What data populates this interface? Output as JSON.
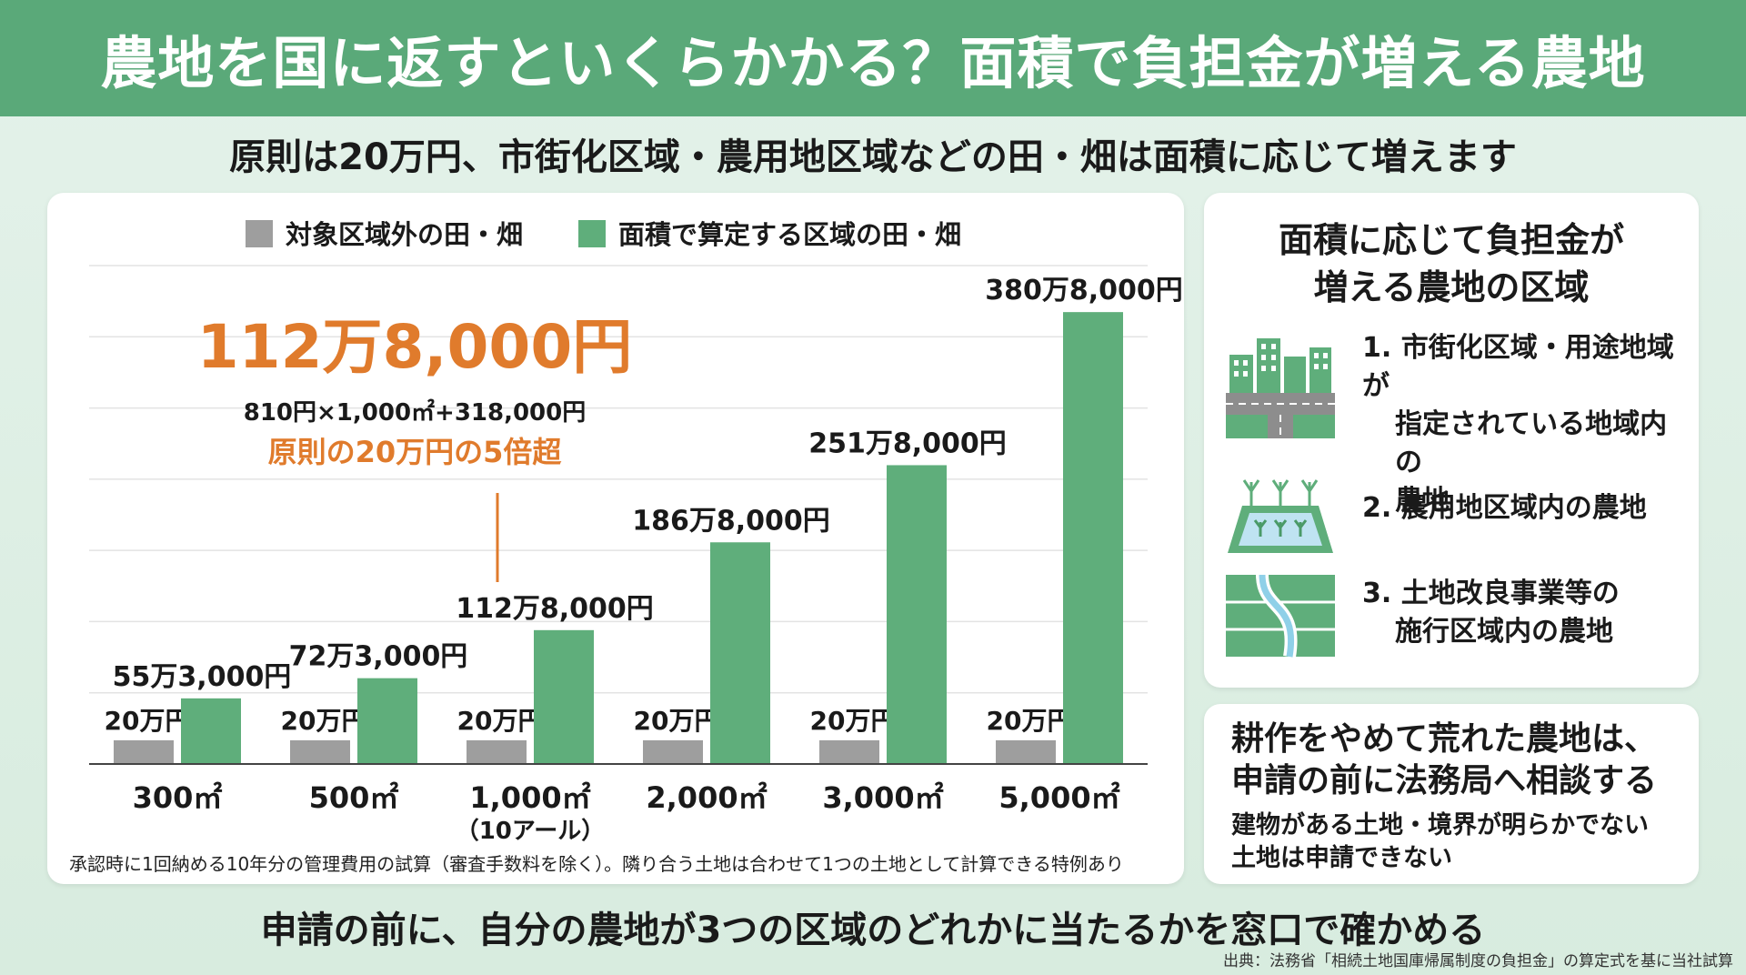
{
  "header": {
    "title": "農地を国に返すといくらかかる？面積で負担金が増える農地"
  },
  "subtitle": "原則は20万円、市街化区域・農用地区域などの田・畑は面積に応じて増えます",
  "chart_data": {
    "type": "bar",
    "categories": [
      "300㎡",
      "500㎡",
      "1,000㎡",
      "2,000㎡",
      "3,000㎡",
      "5,000㎡"
    ],
    "category_sublabels": [
      "",
      "",
      "（10アール）",
      "",
      "",
      ""
    ],
    "series": [
      {
        "name": "対象区域外の田・畑",
        "color": "#9e9e9e",
        "values": [
          200000,
          200000,
          200000,
          200000,
          200000,
          200000
        ],
        "labels": [
          "20万円",
          "20万円",
          "20万円",
          "20万円",
          "20万円",
          "20万円"
        ]
      },
      {
        "name": "面積で算定する区域の田・畑",
        "color": "#5fae7b",
        "values": [
          553000,
          723000,
          1128000,
          1868000,
          2518000,
          3808000
        ],
        "labels": [
          "55万3,000円",
          "72万3,000円",
          "112万8,000円",
          "186万8,000円",
          "251万8,000円",
          "380万8,000円"
        ]
      }
    ],
    "ylim": [
      0,
      4200000
    ],
    "legend_position": "top",
    "grid": true,
    "annotation": {
      "category_index": 2,
      "value_text": "112万8,000円",
      "formula": "810円×1,000㎡+318,000円",
      "comparison": "原則の20万円の5倍超",
      "color": "#e07b2c"
    }
  },
  "chart_footnote": "承認時に1回納める10年分の管理費用の試算（審査手数料を除く）。隣り合う土地は合わせて1つの土地として計算できる特例あり",
  "zones": {
    "title_line1": "面積に応じて負担金が",
    "title_line2": "増える農地の区域",
    "items": [
      {
        "icon": "city-icon",
        "lines": [
          "1. 市街化区域・用途地域が",
          "指定されている地域内の",
          "農地"
        ]
      },
      {
        "icon": "paddy-field-icon",
        "lines": [
          "2. 農用地区域内の農地"
        ]
      },
      {
        "icon": "land-improvement-icon",
        "lines": [
          "3. 土地改良事業等の",
          "施行区域内の農地"
        ]
      }
    ]
  },
  "note": {
    "head_line1": "耕作をやめて荒れた農地は、",
    "head_line2": "申請の前に法務局へ相談する",
    "body_line1": "建物がある土地・境界が明らかでない",
    "body_line2": "土地は申請できない"
  },
  "bottom_message": "申請の前に、自分の農地が3つの区域のどれかに当たるかを窓口で確かめる",
  "source": "出典：法務省「相続土地国庫帰属制度の負担金」の算定式を基に当社試算",
  "colors": {
    "banner": "#5aa979",
    "accent": "#e07b2c",
    "green_bar": "#5fae7b",
    "gray_bar": "#9e9e9e"
  }
}
